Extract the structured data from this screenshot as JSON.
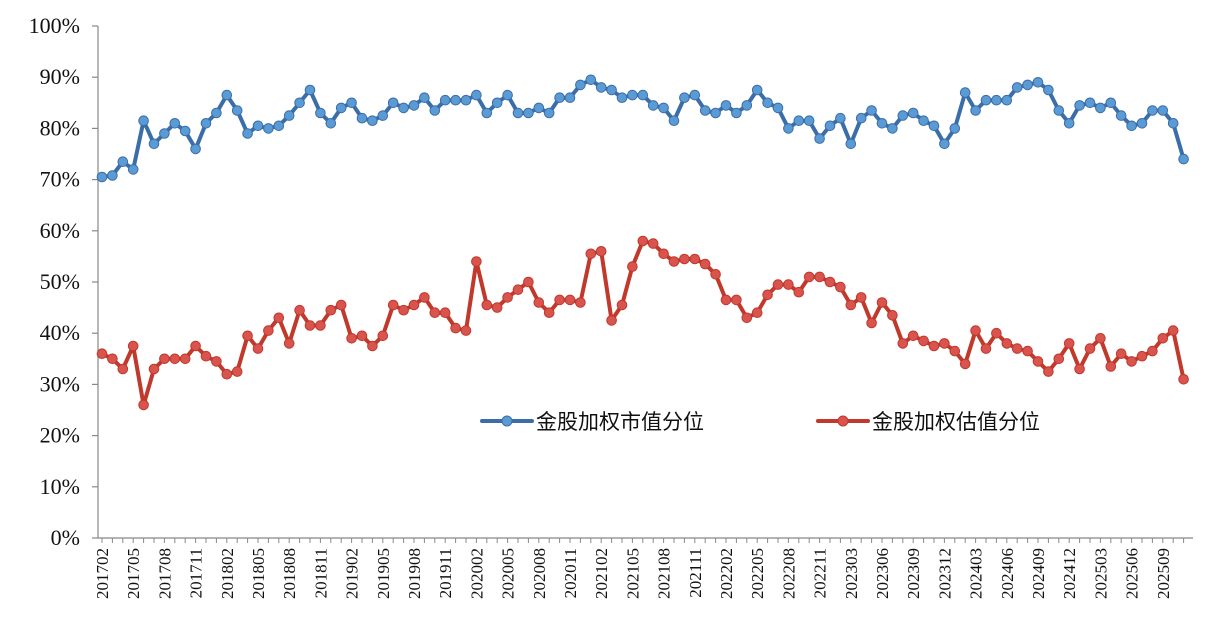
{
  "chart_data": {
    "type": "line",
    "title": "",
    "xlabel": "",
    "ylabel": "",
    "ylim": [
      0,
      100
    ],
    "y_ticks": [
      "0%",
      "10%",
      "20%",
      "30%",
      "40%",
      "50%",
      "60%",
      "70%",
      "80%",
      "90%",
      "100%"
    ],
    "x_tick_labels": [
      "201702",
      "201705",
      "201708",
      "201711",
      "201802",
      "201805",
      "201808",
      "201811",
      "201902",
      "201905",
      "201908",
      "201911",
      "202002",
      "202005",
      "202008",
      "202011",
      "202102",
      "202105",
      "202108",
      "202111",
      "202202",
      "202205",
      "202208",
      "202211",
      "202303",
      "202306",
      "202309",
      "202312",
      "202403",
      "202406",
      "202409",
      "202412",
      "202503",
      "202506",
      "202509"
    ],
    "legend_position": "center-right",
    "series": [
      {
        "name": "金股加权市值分位",
        "color": "#3B6EA8",
        "marker_color": "#5B9BD5",
        "values": [
          70.5,
          70.8,
          73.5,
          72,
          81.5,
          77,
          79,
          81,
          79.5,
          76,
          81,
          83,
          86.5,
          83.5,
          79,
          80.5,
          80,
          80.5,
          82.5,
          85,
          87.5,
          83,
          81,
          84,
          85,
          82,
          81.5,
          82.5,
          85,
          84,
          84.5,
          86,
          83.5,
          85.5,
          85.5,
          85.5,
          86.5,
          83,
          85,
          86.5,
          83,
          83,
          84,
          83,
          86,
          86,
          88.5,
          89.5,
          88,
          87.5,
          86,
          86.5,
          86.5,
          84.5,
          84,
          81.5,
          86,
          86.5,
          83.5,
          83,
          84.5,
          83,
          84.5,
          87.5,
          85,
          84,
          80,
          81.5,
          81.5,
          78,
          80.5,
          82,
          77,
          82,
          83.5,
          81,
          80,
          82.5,
          83,
          81.5,
          80.5,
          77,
          80,
          87,
          83.5,
          85.5,
          85.5,
          85.5,
          88,
          88.5,
          89,
          87.5,
          83.5,
          81,
          84.5,
          85,
          84,
          85,
          82.5,
          80.5,
          81,
          83.5,
          83.5,
          81,
          74
        ]
      },
      {
        "name": "金股加权估值分位",
        "color": "#C0392B",
        "marker_color": "#D9534F",
        "values": [
          36,
          35,
          33,
          37.5,
          26,
          33,
          35,
          35,
          35,
          37.5,
          35.5,
          34.5,
          32,
          32.5,
          39.5,
          37,
          40.5,
          43,
          38,
          44.5,
          41.5,
          41.5,
          44.5,
          45.5,
          39,
          39.5,
          37.5,
          39.5,
          45.5,
          44.5,
          45.5,
          47,
          44,
          44,
          41,
          40.5,
          54,
          45.5,
          45,
          47,
          48.5,
          50,
          46,
          44,
          46.5,
          46.5,
          46,
          55.5,
          56,
          42.5,
          45.5,
          53,
          58,
          57.5,
          55.5,
          54,
          54.5,
          54.5,
          53.5,
          51.5,
          46.5,
          46.5,
          43,
          44,
          47.5,
          49.5,
          49.5,
          48,
          51,
          51,
          50,
          49,
          45.5,
          47,
          42,
          46,
          43.5,
          38,
          39.5,
          38.5,
          37.5,
          38,
          36.5,
          34,
          40.5,
          37,
          40,
          38,
          37,
          36.5,
          34.5,
          32.5,
          35,
          38,
          33,
          37,
          39,
          33.5,
          36,
          34.5,
          35.5,
          36.5,
          39,
          40.5,
          31
        ]
      }
    ]
  }
}
